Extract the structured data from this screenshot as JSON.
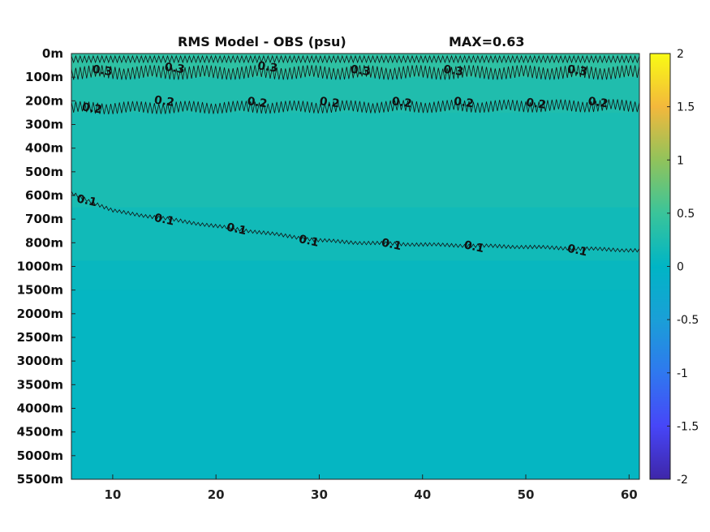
{
  "title_left": "RMS Model - OBS (psu)",
  "title_right": "MAX=0.63",
  "chart_data": {
    "type": "heatmap",
    "xlim": [
      6,
      61
    ],
    "x_ticks": [
      "10",
      "20",
      "30",
      "40",
      "50",
      "60"
    ],
    "x_tick_values": [
      10,
      20,
      30,
      40,
      50,
      60
    ],
    "y_ticks": [
      "0m",
      "100m",
      "200m",
      "300m",
      "400m",
      "500m",
      "600m",
      "700m",
      "800m",
      "1000m",
      "1500m",
      "2000m",
      "2500m",
      "3000m",
      "3500m",
      "4000m",
      "4500m",
      "5000m",
      "5500m"
    ],
    "y_tick_depths": [
      0,
      100,
      200,
      300,
      400,
      500,
      600,
      700,
      800,
      1000,
      1500,
      2000,
      2500,
      3000,
      3500,
      4000,
      4500,
      5000,
      5500
    ],
    "y_axis_note": "depth axis is non-uniform; ticks are equally spaced",
    "colorbar": {
      "min": -2,
      "max": 2,
      "ticks": [
        "2",
        "1.5",
        "1",
        "0.5",
        "0",
        "-0.5",
        "-1",
        "-1.5",
        "-2"
      ],
      "colormap": "parula"
    },
    "field_bands": [
      {
        "depth_from": 0,
        "depth_to": 100,
        "value": 0.4
      },
      {
        "depth_from": 100,
        "depth_to": 250,
        "value": 0.28
      },
      {
        "depth_from": 250,
        "depth_to": 650,
        "value": 0.22
      },
      {
        "depth_from": 650,
        "depth_to": 950,
        "value": 0.15
      },
      {
        "depth_from": 950,
        "depth_to": 1500,
        "value": 0.07
      },
      {
        "depth_from": 1500,
        "depth_to": 5500,
        "value": 0.04
      }
    ],
    "contours": [
      {
        "level": 0.3,
        "labels": [
          "0.3",
          "0.3",
          "0.3",
          "0.3",
          "0.3",
          "0.3"
        ],
        "label_x": [
          9,
          16,
          25,
          34,
          43,
          55
        ],
        "label_depth": [
          70,
          60,
          55,
          70,
          70,
          70
        ],
        "path_depth": [
          [
            6,
            80
          ],
          [
            61,
            80
          ]
        ]
      },
      {
        "level": 0.2,
        "labels": [
          "0.2",
          "0.2",
          "0.2",
          "0.2",
          "0.2",
          "0.2",
          "0.2",
          "0.2"
        ],
        "label_x": [
          8,
          15,
          24,
          31,
          38,
          44,
          51,
          57
        ],
        "label_depth": [
          230,
          200,
          205,
          205,
          205,
          205,
          210,
          205
        ],
        "path_depth": [
          [
            6,
            230
          ],
          [
            61,
            220
          ]
        ]
      },
      {
        "level": 0.1,
        "labels": [
          "0.1",
          "0.1",
          "0.1",
          "0.1",
          "0.1",
          "0.1",
          "0.1"
        ],
        "label_x": [
          7.5,
          15,
          22,
          29,
          37,
          45,
          55
        ],
        "label_depth": [
          620,
          700,
          740,
          790,
          810,
          830,
          860
        ],
        "path_depth": [
          [
            6,
            590
          ],
          [
            10,
            665
          ],
          [
            20,
            730
          ],
          [
            30,
            790
          ],
          [
            40,
            815
          ],
          [
            50,
            835
          ],
          [
            61,
            865
          ]
        ]
      }
    ]
  }
}
